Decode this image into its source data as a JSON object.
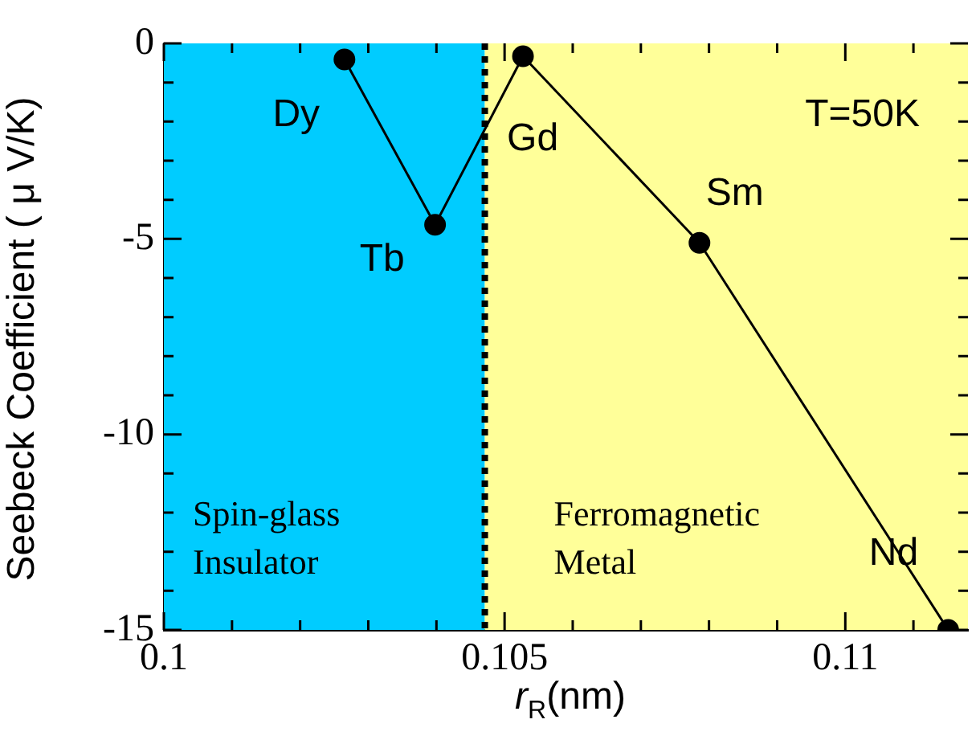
{
  "chart_data": {
    "type": "line",
    "xlabel": "r$_{R}$(nm)",
    "ylabel": "Seebeck Coefficient ( μ V/K)",
    "x": [
      0.10265,
      0.10398,
      0.10527,
      0.10786,
      0.11151
    ],
    "series": [
      {
        "color": "#000000",
        "values": [
          -0.41,
          -4.64,
          -0.33,
          -5.1,
          -15.0
        ]
      }
    ],
    "xlim": [
      0.1,
      0.1118
    ],
    "xticks": [
      0.1,
      {
        "value": 0.101,
        "label": null
      },
      {
        "value": 0.102,
        "label": null
      },
      {
        "value": 0.103,
        "label": null
      },
      {
        "value": 0.104,
        "label": null
      },
      0.105,
      {
        "value": 0.106,
        "label": null
      },
      {
        "value": 0.107,
        "label": null
      },
      {
        "value": 0.108,
        "label": null
      },
      {
        "value": 0.109,
        "label": null
      },
      0.11,
      {
        "value": 0.111,
        "label": null
      }
    ],
    "ylim": [
      -15,
      0
    ],
    "yticks": [
      -15,
      {
        "value": -14,
        "label": null
      },
      {
        "value": -13,
        "label": null
      },
      {
        "value": -12,
        "label": null
      },
      {
        "value": -11,
        "label": null
      },
      -10,
      {
        "value": -9,
        "label": null
      },
      {
        "value": -8,
        "label": null
      },
      {
        "value": -7,
        "label": null
      },
      {
        "value": -6,
        "label": null
      },
      -5,
      {
        "value": -4,
        "label": null
      },
      {
        "value": -3,
        "label": null
      },
      {
        "value": -2,
        "label": null
      },
      {
        "value": -1,
        "label": null
      },
      0
    ],
    "bands": [
      {
        "axis": "x",
        "from": 0.1,
        "to": 0.10471,
        "label": "Spin-glass\nInsulator",
        "color": "#00ccff"
      },
      {
        "axis": "x",
        "from": 0.10471,
        "to": 0.1118,
        "label": "Ferromagnetic\nMetal",
        "color": "#ffff99"
      }
    ],
    "ref_lines": [
      {
        "axis": "x",
        "value": 0.10471,
        "color": "#000000",
        "line_style": "dotted"
      }
    ],
    "annotations": [
      {
        "text": "Dy",
        "x": 0.10265,
        "y": -0.41
      },
      {
        "text": "Tb",
        "x": 0.10398,
        "y": -4.64
      },
      {
        "text": "Gd",
        "x": 0.10527,
        "y": -0.33
      },
      {
        "text": "Sm",
        "x": 0.10786,
        "y": -5.1
      },
      {
        "text": "Nd",
        "x": 0.11151,
        "y": -15.0
      },
      "T=50K"
    ],
    "marker": "circle",
    "line_style": "solid",
    "grid": false,
    "legend": false
  }
}
